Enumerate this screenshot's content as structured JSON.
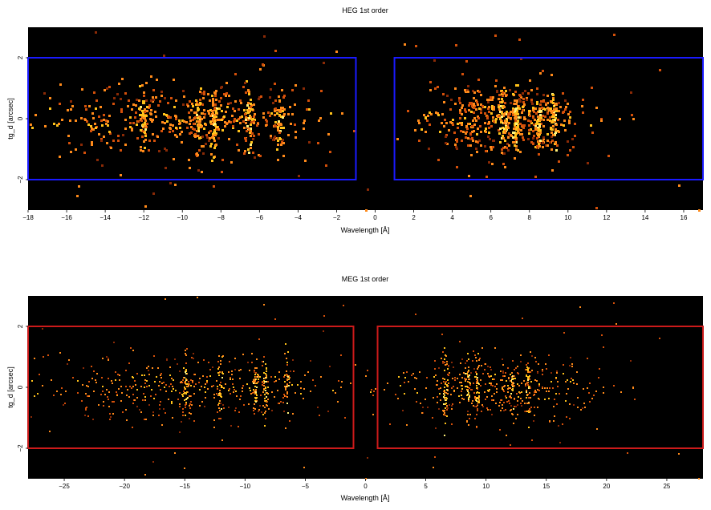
{
  "chart_data": [
    {
      "type": "heatmap",
      "title": "HEG 1st order",
      "xlabel": "Wavelength [Å]",
      "ylabel": "tg_d [arcsec]",
      "xlim": [
        -18,
        17
      ],
      "ylim": [
        -3,
        3
      ],
      "xticks": [
        -18,
        -16,
        -14,
        -12,
        -10,
        -8,
        -6,
        -4,
        -2,
        0,
        2,
        4,
        6,
        8,
        10,
        12,
        14,
        16
      ],
      "yticks": [
        -2,
        0,
        2
      ],
      "background": "#000000",
      "region_color": "#1a1aff",
      "regions": [
        {
          "name": "minus-order",
          "x": [
            -18,
            -1
          ],
          "y": [
            -2,
            2
          ]
        },
        {
          "name": "plus-order",
          "x": [
            1,
            17
          ],
          "y": [
            -2,
            2
          ]
        }
      ],
      "event_extent": [
        {
          "x": [
            -17.5,
            -3
          ],
          "y": [
            -1.5,
            1.5
          ]
        },
        {
          "x": [
            3,
            10.5
          ],
          "y": [
            -1.5,
            1.5
          ]
        }
      ],
      "bright_lines": [
        -12.1,
        -9.2,
        -8.4,
        -6.6,
        -5.0,
        6.6,
        7.2,
        8.4,
        9.2
      ]
    },
    {
      "type": "heatmap",
      "title": "MEG 1st order",
      "xlabel": "Wavelength [Å]",
      "ylabel": "tg_d [arcsec]",
      "xlim": [
        -28,
        28
      ],
      "ylim": [
        -3,
        3
      ],
      "xticks": [
        -25,
        -20,
        -15,
        -10,
        -5,
        0,
        5,
        10,
        15,
        20,
        25
      ],
      "yticks": [
        -2,
        0,
        2
      ],
      "background": "#000000",
      "region_color": "#cc1a1a",
      "regions": [
        {
          "name": "minus-order",
          "x": [
            -28,
            -1
          ],
          "y": [
            -2,
            2
          ]
        },
        {
          "name": "plus-order",
          "x": [
            1,
            28
          ],
          "y": [
            -2,
            2
          ]
        }
      ],
      "event_extent": [
        {
          "x": [
            -27,
            -3
          ],
          "y": [
            -1.6,
            1.6
          ]
        },
        {
          "x": [
            2,
            20
          ],
          "y": [
            -1.6,
            1.6
          ]
        }
      ],
      "bright_lines": [
        -15.0,
        -12.1,
        -9.2,
        -8.4,
        -6.6,
        6.6,
        8.4,
        9.2,
        12.1,
        13.4
      ]
    }
  ]
}
